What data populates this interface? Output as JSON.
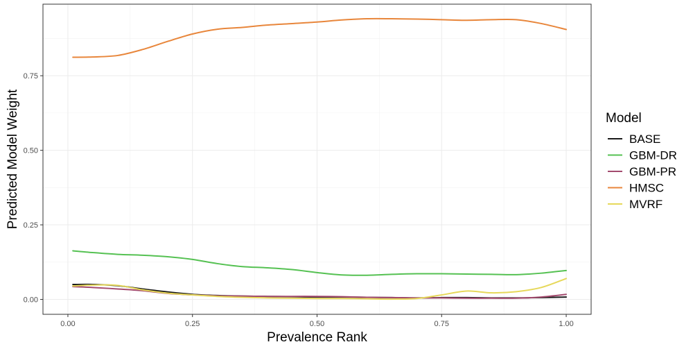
{
  "chart_data": {
    "type": "line",
    "xlabel": "Prevalence Rank",
    "ylabel": "Predicted Model Weight",
    "xlim": [
      -0.05,
      1.05
    ],
    "ylim": [
      -0.05,
      0.99
    ],
    "x_ticks": [
      0.0,
      0.25,
      0.5,
      0.75,
      1.0
    ],
    "x_tick_labels": [
      "0.00",
      "0.25",
      "0.50",
      "0.75",
      "1.00"
    ],
    "y_ticks": [
      0.0,
      0.25,
      0.5,
      0.75
    ],
    "y_tick_labels": [
      "0.00",
      "0.25",
      "0.50",
      "0.75"
    ],
    "grid": true,
    "legend": {
      "title": "Model",
      "position": "right"
    },
    "x": [
      0.01,
      0.05,
      0.1,
      0.15,
      0.2,
      0.25,
      0.3,
      0.35,
      0.4,
      0.45,
      0.5,
      0.55,
      0.6,
      0.65,
      0.7,
      0.75,
      0.8,
      0.85,
      0.9,
      0.95,
      1.0
    ],
    "series": [
      {
        "name": "BASE",
        "color": "#1a1a1a",
        "values": [
          0.05,
          0.05,
          0.046,
          0.035,
          0.025,
          0.017,
          0.013,
          0.011,
          0.01,
          0.009,
          0.008,
          0.008,
          0.007,
          0.006,
          0.005,
          0.006,
          0.006,
          0.005,
          0.005,
          0.006,
          0.008
        ]
      },
      {
        "name": "GBM-DR",
        "color": "#55c152",
        "values": [
          0.163,
          0.157,
          0.151,
          0.148,
          0.143,
          0.134,
          0.12,
          0.11,
          0.106,
          0.1,
          0.09,
          0.082,
          0.081,
          0.084,
          0.086,
          0.086,
          0.085,
          0.084,
          0.083,
          0.088,
          0.097
        ]
      },
      {
        "name": "GBM-PR",
        "color": "#a34a6e",
        "values": [
          0.043,
          0.04,
          0.035,
          0.029,
          0.02,
          0.015,
          0.012,
          0.011,
          0.01,
          0.01,
          0.01,
          0.009,
          0.007,
          0.006,
          0.005,
          0.005,
          0.004,
          0.004,
          0.004,
          0.008,
          0.017
        ]
      },
      {
        "name": "HMSC",
        "color": "#e8863b",
        "values": [
          0.812,
          0.813,
          0.818,
          0.838,
          0.865,
          0.89,
          0.906,
          0.912,
          0.92,
          0.925,
          0.93,
          0.937,
          0.941,
          0.941,
          0.94,
          0.938,
          0.936,
          0.938,
          0.938,
          0.925,
          0.905
        ]
      },
      {
        "name": "MVRF",
        "color": "#e6d85a",
        "values": [
          0.045,
          0.048,
          0.047,
          0.032,
          0.021,
          0.015,
          0.01,
          0.007,
          0.005,
          0.004,
          0.003,
          0.003,
          0.002,
          0.001,
          0.003,
          0.015,
          0.028,
          0.022,
          0.026,
          0.04,
          0.07
        ]
      }
    ]
  }
}
